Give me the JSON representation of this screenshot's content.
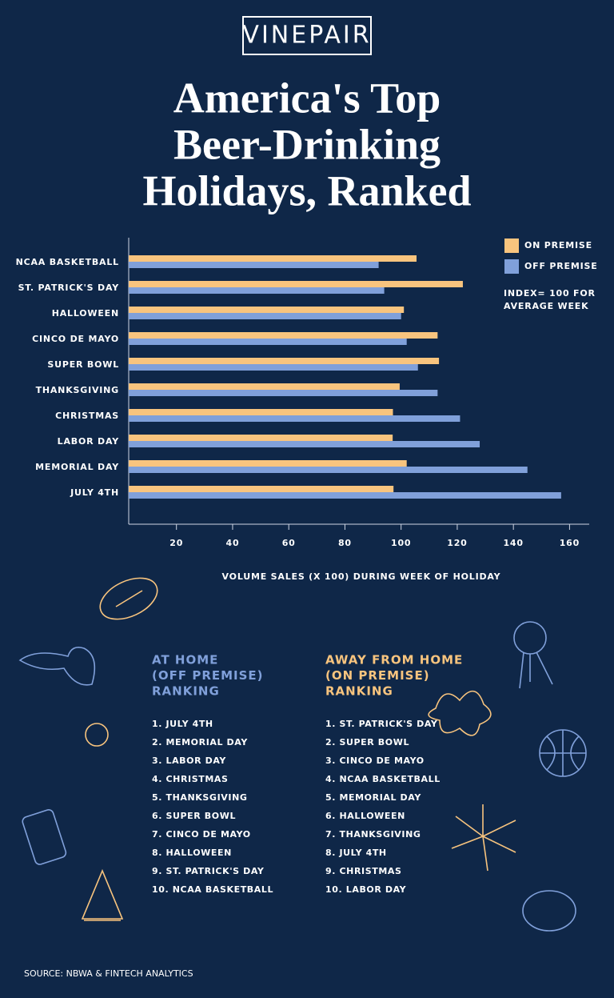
{
  "logo": "VINEPAIR",
  "chart_data": {
    "type": "bar",
    "orientation": "horizontal",
    "title_lines": [
      "America's Top",
      "Beer-Drinking",
      "Holidays, Ranked"
    ],
    "categories": [
      "NCAA BASKETBALL",
      "ST. PATRICK'S DAY",
      "HALLOWEEN",
      "CINCO DE MAYO",
      "SUPER BOWL",
      "THANKSGIVING",
      "CHRISTMAS",
      "LABOR DAY",
      "MEMORIAL DAY",
      "JULY 4TH"
    ],
    "series": [
      {
        "name": "ON PREMISE",
        "color": "#f8c47e",
        "values": [
          105.5,
          122,
          101,
          113,
          113.5,
          99.5,
          97.1,
          97,
          102,
          97.3
        ]
      },
      {
        "name": "OFF PREMISE",
        "color": "#80a0da",
        "values": [
          92,
          94,
          100,
          102,
          106,
          113,
          121,
          128,
          145,
          157
        ]
      }
    ],
    "note_lines": [
      "INDEX= 100 FOR",
      "AVERAGE WEEK"
    ],
    "x_label": "VOLUME SALES (X 100) DURING WEEK OF HOLIDAY",
    "xlim": [
      3,
      167
    ],
    "xticks": [
      20,
      40,
      60,
      80,
      100,
      120,
      140,
      160
    ],
    "legend": "top-right"
  },
  "rankings": [
    {
      "title_lines": [
        "AT HOME",
        "(OFF PREMISE)",
        "RANKING"
      ],
      "color": "#80a0da",
      "items": [
        "1. JULY 4TH",
        "2. MEMORIAL DAY",
        "3. LABOR DAY",
        "4. CHRISTMAS",
        "5. THANKSGIVING",
        "6. SUPER BOWL",
        "7. CINCO DE MAYO",
        "8. HALLOWEEN",
        "9. ST. PATRICK'S DAY",
        "10. NCAA BASKETBALL"
      ]
    },
    {
      "title_lines": [
        "AWAY FROM HOME",
        "(ON PREMISE)",
        "RANKING"
      ],
      "color": "#f8c47e",
      "items": [
        "1. ST. PATRICK'S DAY",
        "2. SUPER BOWL",
        "3. CINCO DE MAYO",
        "4. NCAA BASKETBALL",
        "5. MEMORIAL DAY",
        "6. HALLOWEEN",
        "7. THANKSGIVING",
        "8. JULY 4TH",
        "9. CHRISTMAS",
        "10. LABOR DAY"
      ]
    }
  ],
  "source": "SOURCE: NBWA & FINTECH ANALYTICS"
}
